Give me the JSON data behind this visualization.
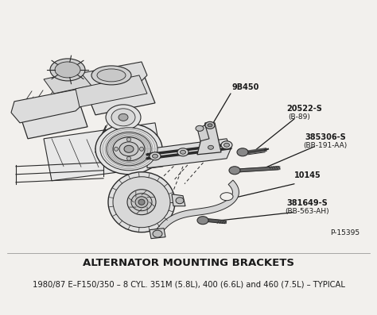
{
  "title": "ALTERNATOR MOUNTING BRACKETS",
  "subtitle": "1980/87 E–F150/350 – 8 CYL. 351M (5.8L), 400 (6.6L) and 460 (7.5L) – TYPICAL",
  "part_number": "P-15395",
  "background_color": "#f2f0ed",
  "line_color": "#2a2a2a",
  "text_color": "#1a1a1a",
  "figsize": [
    4.74,
    3.97
  ],
  "dpi": 100,
  "title_fontsize": 9.5,
  "subtitle_fontsize": 7.2,
  "label_fontsize": 7.0,
  "part_number_fontsize": 6.5
}
